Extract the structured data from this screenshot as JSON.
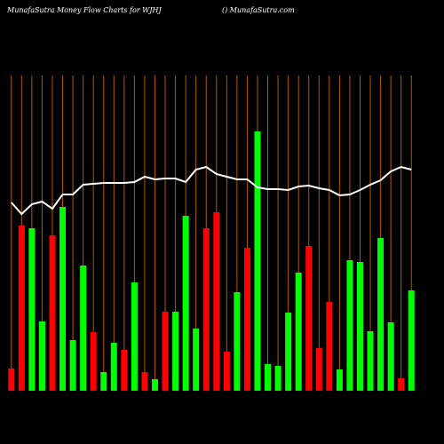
{
  "chart_data": {
    "type": "bar",
    "title": "MunafaSutra  Money Flow  Charts for WJHJ",
    "subtitle": "() MunafaSutra.com",
    "values": [
      25,
      186,
      183,
      78,
      175,
      207,
      57,
      141,
      66,
      21,
      54,
      46,
      122,
      21,
      13,
      89,
      89,
      197,
      70,
      183,
      201,
      44,
      111,
      161,
      292,
      30,
      28,
      88,
      133,
      163,
      48,
      100,
      24,
      147,
      145,
      67,
      172,
      77,
      14,
      113
    ],
    "colors": [
      "#ff0000",
      "#ff0000",
      "#00ff00",
      "#00ff00",
      "#ff0000",
      "#00ff00",
      "#00ff00",
      "#00ff00",
      "#ff0000",
      "#00ff00",
      "#00ff00",
      "#ff0000",
      "#00ff00",
      "#ff0000",
      "#00ff00",
      "#ff0000",
      "#00ff00",
      "#00ff00",
      "#00ff00",
      "#ff0000",
      "#ff0000",
      "#ff0000",
      "#00ff00",
      "#ff0000",
      "#00ff00",
      "#00ff00",
      "#00ff00",
      "#00ff00",
      "#00ff00",
      "#ff0000",
      "#ff0000",
      "#ff0000",
      "#00ff00",
      "#00ff00",
      "#00ff00",
      "#00ff00",
      "#00ff00",
      "#00ff00",
      "#ff0000",
      "#00ff00"
    ],
    "line_values": [
      212,
      199,
      210,
      213,
      205,
      221,
      221,
      232,
      233,
      234,
      234,
      234,
      235,
      241,
      238,
      239,
      239,
      235,
      249,
      252,
      244,
      241,
      238,
      238,
      229,
      227,
      227,
      226,
      230,
      231,
      228,
      226,
      220,
      221,
      226,
      232,
      237,
      247,
      252,
      249
    ],
    "line_color": "#ffffff",
    "grid_color": "#b35900",
    "ylim": [
      0,
      355
    ]
  }
}
